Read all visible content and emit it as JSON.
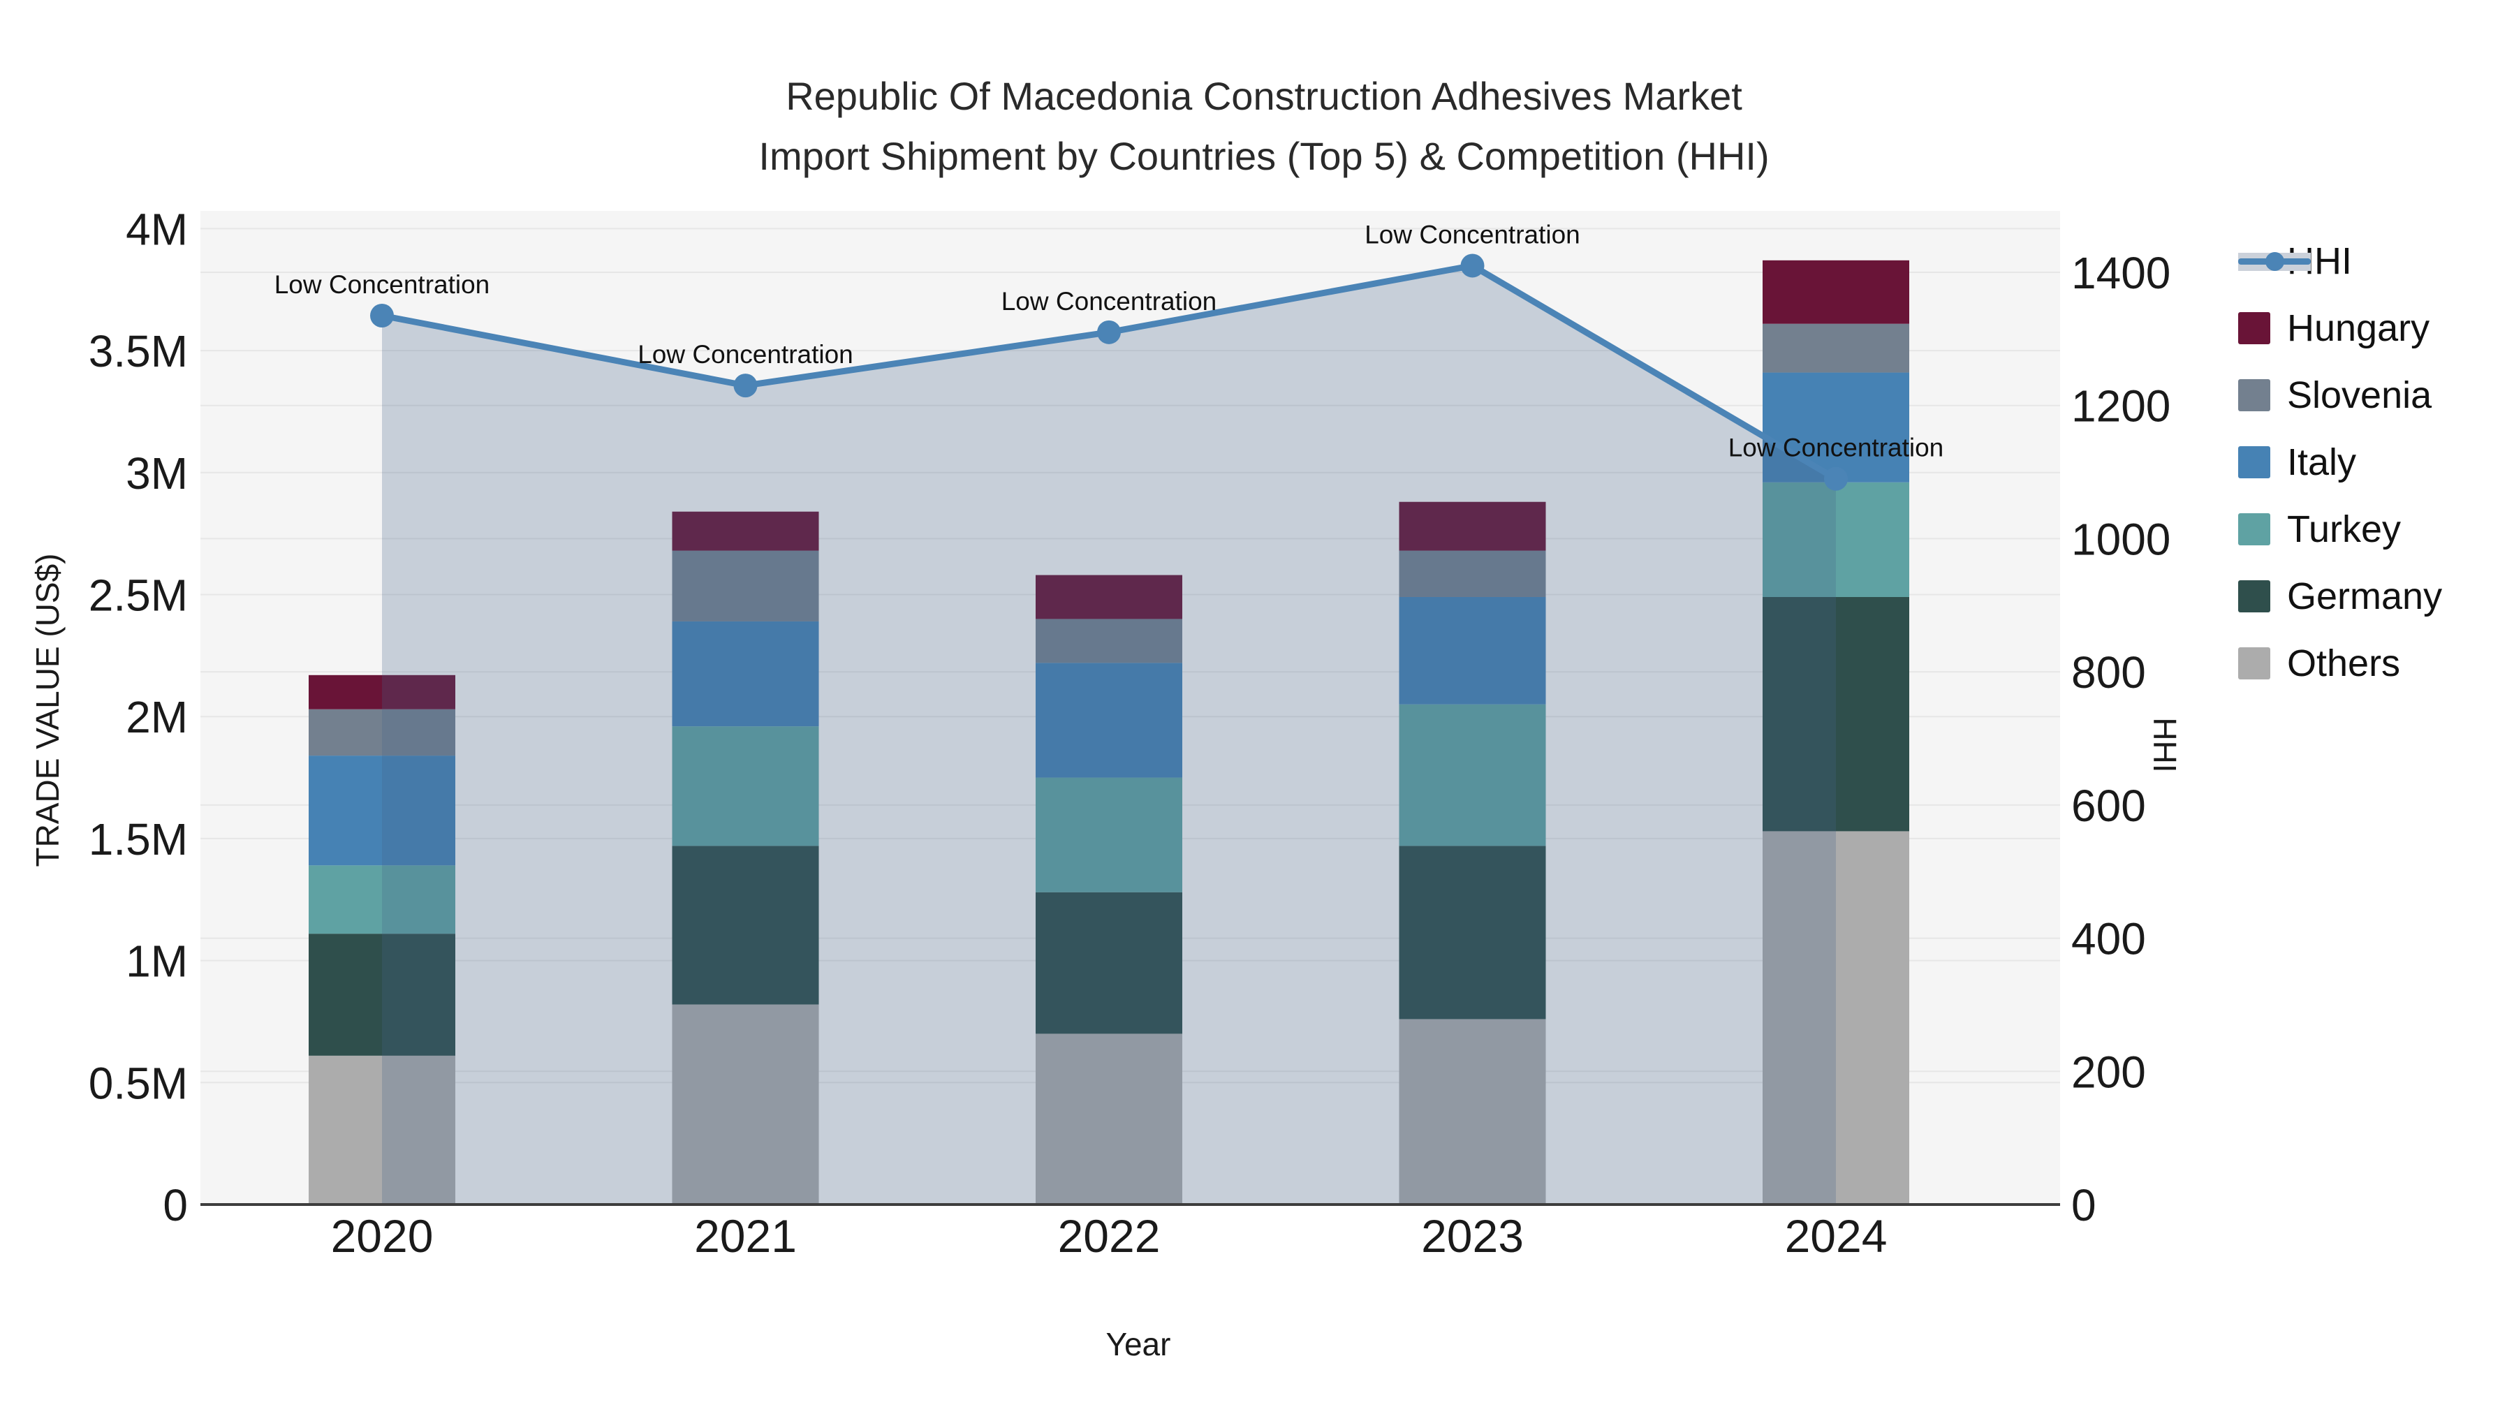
{
  "title": {
    "line1": "Republic Of Macedonia Construction Adhesives Market",
    "line2": "Import Shipment by Countries (Top 5) & Competition (HHI)"
  },
  "axes": {
    "x": {
      "title": "Year",
      "tick_labels": [
        "2020",
        "2021",
        "2022",
        "2023",
        "2024"
      ]
    },
    "y_left": {
      "title": "TRADE VALUE (US$)",
      "tick_labels": [
        "0",
        "0.5M",
        "1M",
        "1.5M",
        "2M",
        "2.5M",
        "3M",
        "3.5M",
        "4M"
      ],
      "min": 0,
      "max": 4000000
    },
    "y_right": {
      "title": "HHI",
      "tick_labels": [
        "0",
        "200",
        "400",
        "600",
        "800",
        "1000",
        "1200",
        "1400"
      ],
      "min": 0,
      "max": 1400
    }
  },
  "legend": [
    {
      "label": "HHI",
      "color": "#4b84b6",
      "type": "line"
    },
    {
      "label": "Hungary",
      "color": "#691437",
      "type": "swatch"
    },
    {
      "label": "Slovenia",
      "color": "#73808f",
      "type": "swatch"
    },
    {
      "label": "Italy",
      "color": "#4682b4",
      "type": "swatch"
    },
    {
      "label": "Turkey",
      "color": "#5fa2a3",
      "type": "swatch"
    },
    {
      "label": "Germany",
      "color": "#2f4f4c",
      "type": "swatch"
    },
    {
      "label": "Others",
      "color": "#acacac",
      "type": "swatch"
    }
  ],
  "chart_data": {
    "type": "bar",
    "subtype": "stacked bars (left axis, trade value US$) + HHI line with filled area (right axis)",
    "categories": [
      "2020",
      "2021",
      "2022",
      "2023",
      "2024"
    ],
    "stack_order_bottom_to_top": [
      "Others",
      "Germany",
      "Turkey",
      "Italy",
      "Slovenia",
      "Hungary"
    ],
    "series": [
      {
        "name": "Others",
        "color": "#acacac",
        "values": [
          610000,
          820000,
          700000,
          760000,
          1530000
        ]
      },
      {
        "name": "Germany",
        "color": "#2f4f4c",
        "values": [
          500000,
          650000,
          580000,
          710000,
          960000
        ]
      },
      {
        "name": "Turkey",
        "color": "#5fa2a3",
        "values": [
          280000,
          490000,
          470000,
          580000,
          470000
        ]
      },
      {
        "name": "Italy",
        "color": "#4682b4",
        "values": [
          450000,
          430000,
          470000,
          440000,
          450000
        ]
      },
      {
        "name": "Slovenia",
        "color": "#73808f",
        "values": [
          190000,
          290000,
          180000,
          190000,
          200000
        ]
      },
      {
        "name": "Hungary",
        "color": "#691437",
        "values": [
          140000,
          160000,
          180000,
          200000,
          260000
        ]
      }
    ],
    "bar_totals": [
      2170000,
      2840000,
      2580000,
      2880000,
      3870000
    ],
    "line_series": {
      "name": "HHI",
      "color": "#4b84b6",
      "area_fill": "rgba(70,100,140,0.26)",
      "values": [
        1335,
        1230,
        1310,
        1410,
        1090
      ]
    },
    "annotations": [
      {
        "x": "2020",
        "text": "Low Concentration"
      },
      {
        "x": "2021",
        "text": "Low Concentration"
      },
      {
        "x": "2022",
        "text": "Low Concentration"
      },
      {
        "x": "2023",
        "text": "Low Concentration"
      },
      {
        "x": "2024",
        "text": "Low Concentration"
      }
    ],
    "title": "Republic Of Macedonia Construction Adhesives Market Import Shipment by Countries (Top 5) & Competition (HHI)",
    "xlabel": "Year",
    "ylabel_left": "TRADE VALUE (US$)",
    "ylabel_right": "HHI",
    "ylim_left": [
      0,
      4000000
    ],
    "ylim_right": [
      0,
      1400
    ],
    "grid": true,
    "legend_position": "right",
    "plot_bg": "#f5f5f5",
    "grid_color": "#e6e6e6",
    "axis_line_color": "#3d3d3d"
  }
}
